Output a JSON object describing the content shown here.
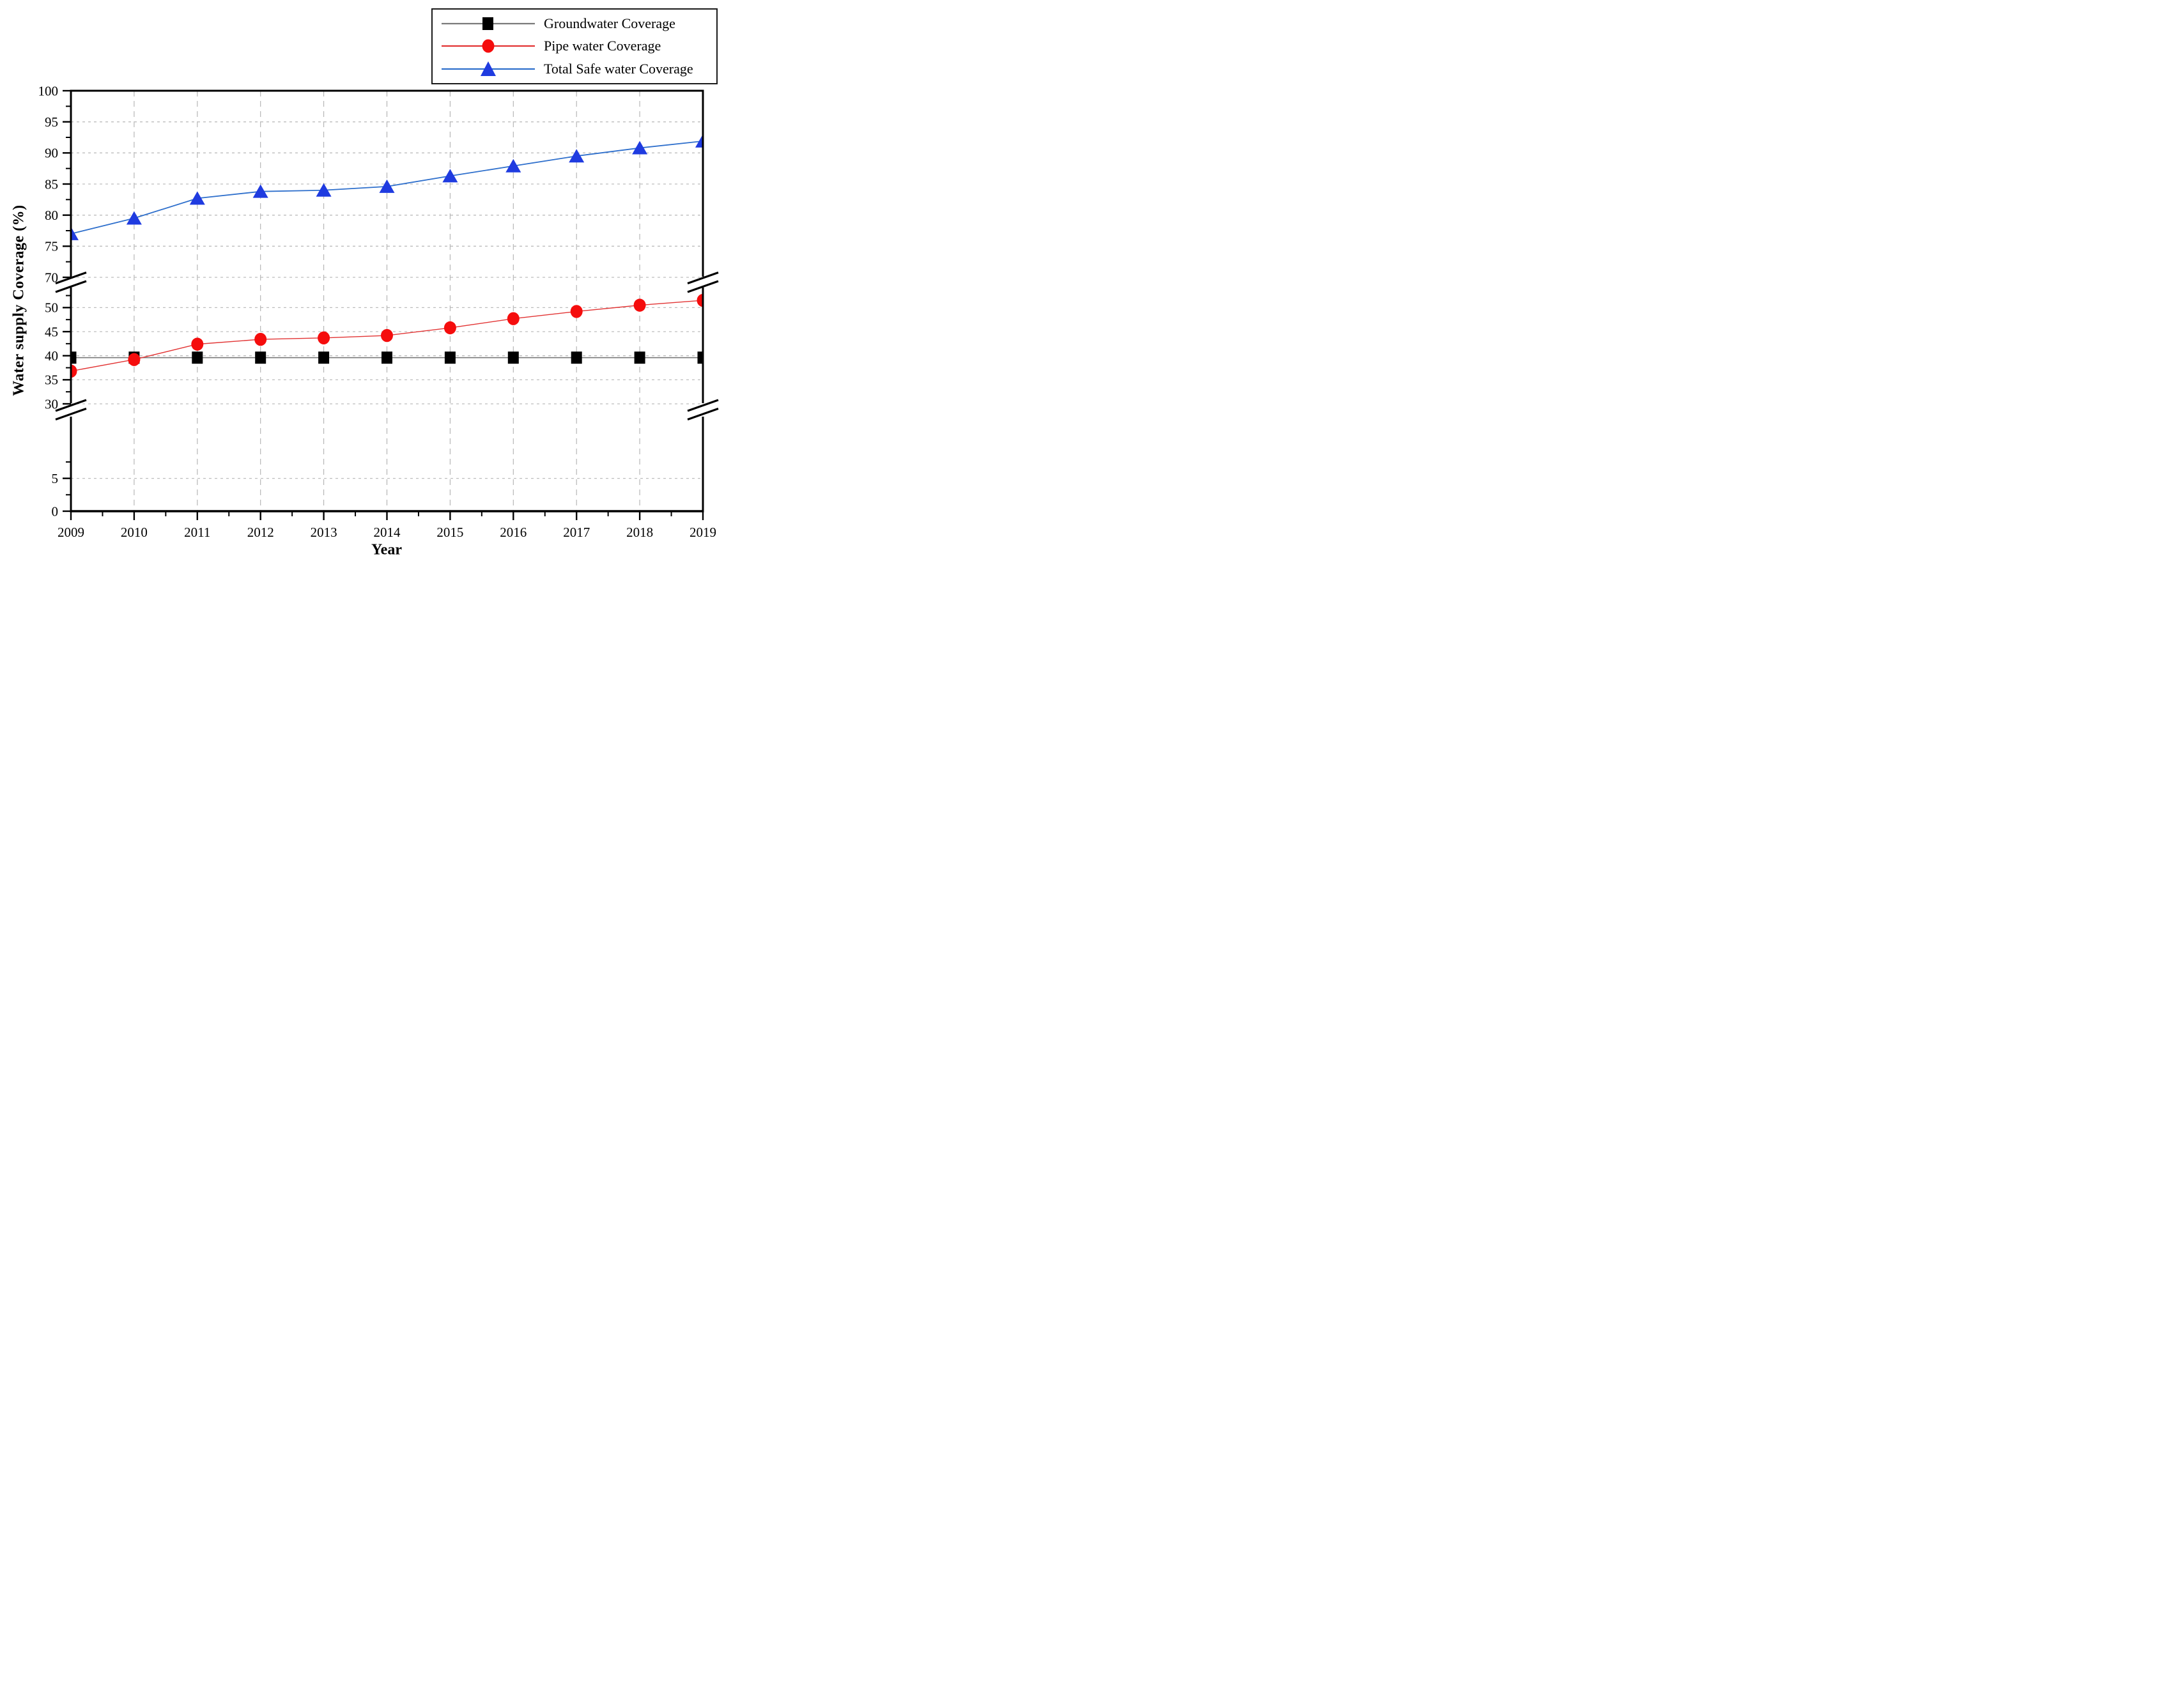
{
  "chart_data": {
    "type": "line",
    "title": "",
    "xlabel": "Year",
    "ylabel": "Water supply Coverage (%)",
    "x": [
      2009,
      2010,
      2011,
      2012,
      2013,
      2014,
      2015,
      2016,
      2017,
      2018,
      2019
    ],
    "x_minor_tick_step": 0.5,
    "series": [
      {
        "name": "Groundwater Coverage",
        "marker": "square",
        "marker_color": "#000000",
        "line_color": "#7a7a7a",
        "values": [
          39.6,
          39.6,
          39.6,
          39.6,
          39.6,
          39.6,
          39.6,
          39.6,
          39.6,
          39.6,
          39.6
        ]
      },
      {
        "name": "Pipe water Coverage",
        "marker": "circle",
        "marker_color": "#f50d0d",
        "line_color": "#e23333",
        "values": [
          36.8,
          39.2,
          42.4,
          43.4,
          43.7,
          44.2,
          45.8,
          47.7,
          49.2,
          50.5,
          51.5
        ]
      },
      {
        "name": "Total Safe water Coverage",
        "marker": "triangle",
        "marker_color": "#1f3be0",
        "line_color": "#2e6fcc",
        "values": [
          77.0,
          79.5,
          82.7,
          83.8,
          84.0,
          84.6,
          86.3,
          87.9,
          89.5,
          90.8,
          91.9
        ]
      }
    ],
    "y_axis": {
      "broken": true,
      "break_symbol": "double-slash",
      "sections": [
        {
          "range": [
            70,
            100
          ],
          "major_ticks": [
            70,
            75,
            80,
            85,
            90,
            95,
            100
          ],
          "minor_ticks": [
            72.5,
            77.5,
            82.5,
            87.5,
            92.5,
            97.5
          ],
          "gridlines": [
            70,
            75,
            80,
            85,
            90,
            95
          ]
        },
        {
          "range": [
            30,
            54.3
          ],
          "major_ticks": [
            30,
            35,
            40,
            45,
            50
          ],
          "minor_ticks": [
            32.5,
            37.5,
            42.5,
            47.5,
            52.5
          ],
          "gridlines": [
            30,
            35,
            40,
            45,
            50
          ]
        },
        {
          "range": [
            0,
            14.6
          ],
          "major_ticks": [
            0,
            5
          ],
          "minor_ticks": [
            2.5,
            7.5
          ],
          "gridlines": [
            5
          ]
        }
      ]
    },
    "legend": {
      "position": "top-right",
      "entries": [
        "Groundwater Coverage",
        "Pipe water Coverage",
        "Total Safe water Coverage"
      ]
    },
    "grid": true,
    "colors": {
      "background": "#ffffff",
      "axis": "#000000",
      "gridline": "#bdbdbd",
      "vertical_gridline": "#b0b0b0"
    }
  }
}
